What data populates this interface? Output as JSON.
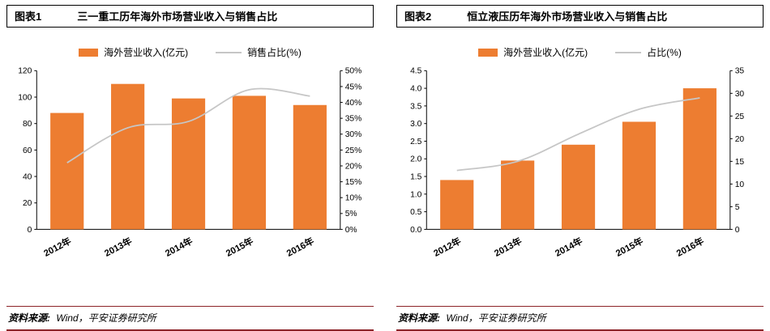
{
  "colors": {
    "bar": "#ED7D31",
    "line": "#C6C6C6",
    "rule": "#8C2328",
    "header_border": "#000000"
  },
  "panels": [
    {
      "tag": "图表1",
      "title": "三一重工历年海外市场营业收入与销售占比",
      "source_label": "资料来源:",
      "source_text": "Wind，平安证券研究所"
    },
    {
      "tag": "图表2",
      "title": "恒立液压历年海外市场营业收入与销售占比",
      "source_label": "资料来源:",
      "source_text": "Wind，平安证券研究所"
    }
  ],
  "chart_data": [
    {
      "type": "bar",
      "subtype": "bar+line-combo",
      "categories": [
        "2012年",
        "2013年",
        "2014年",
        "2015年",
        "2016年"
      ],
      "series": [
        {
          "name": "海外营业收入(亿元)",
          "type": "bar",
          "axis": "left",
          "values": [
            88,
            110,
            99,
            101,
            94
          ]
        },
        {
          "name": "销售占比(%)",
          "type": "line",
          "axis": "right",
          "values": [
            21,
            32,
            34,
            44,
            42
          ]
        }
      ],
      "left_axis": {
        "min": 0,
        "max": 120,
        "step": 20,
        "decimals": 0,
        "suffix": ""
      },
      "right_axis": {
        "min": 0,
        "max": 50,
        "step": 5,
        "decimals": 0,
        "suffix": "%"
      },
      "legend_position": "top",
      "grid": false
    },
    {
      "type": "bar",
      "subtype": "bar+line-combo",
      "categories": [
        "2012年",
        "2013年",
        "2014年",
        "2015年",
        "2016年"
      ],
      "series": [
        {
          "name": "海外营业收入(亿元)",
          "type": "bar",
          "axis": "left",
          "values": [
            1.4,
            1.95,
            2.4,
            3.05,
            4.0
          ]
        },
        {
          "name": "占比(%)",
          "type": "line",
          "axis": "right",
          "values": [
            13,
            15,
            21,
            26.5,
            29
          ]
        }
      ],
      "left_axis": {
        "min": 0,
        "max": 4.5,
        "step": 0.5,
        "decimals": 1,
        "suffix": ""
      },
      "right_axis": {
        "min": 0,
        "max": 35,
        "step": 5,
        "decimals": 0,
        "suffix": ""
      },
      "legend_position": "top",
      "grid": false
    }
  ]
}
